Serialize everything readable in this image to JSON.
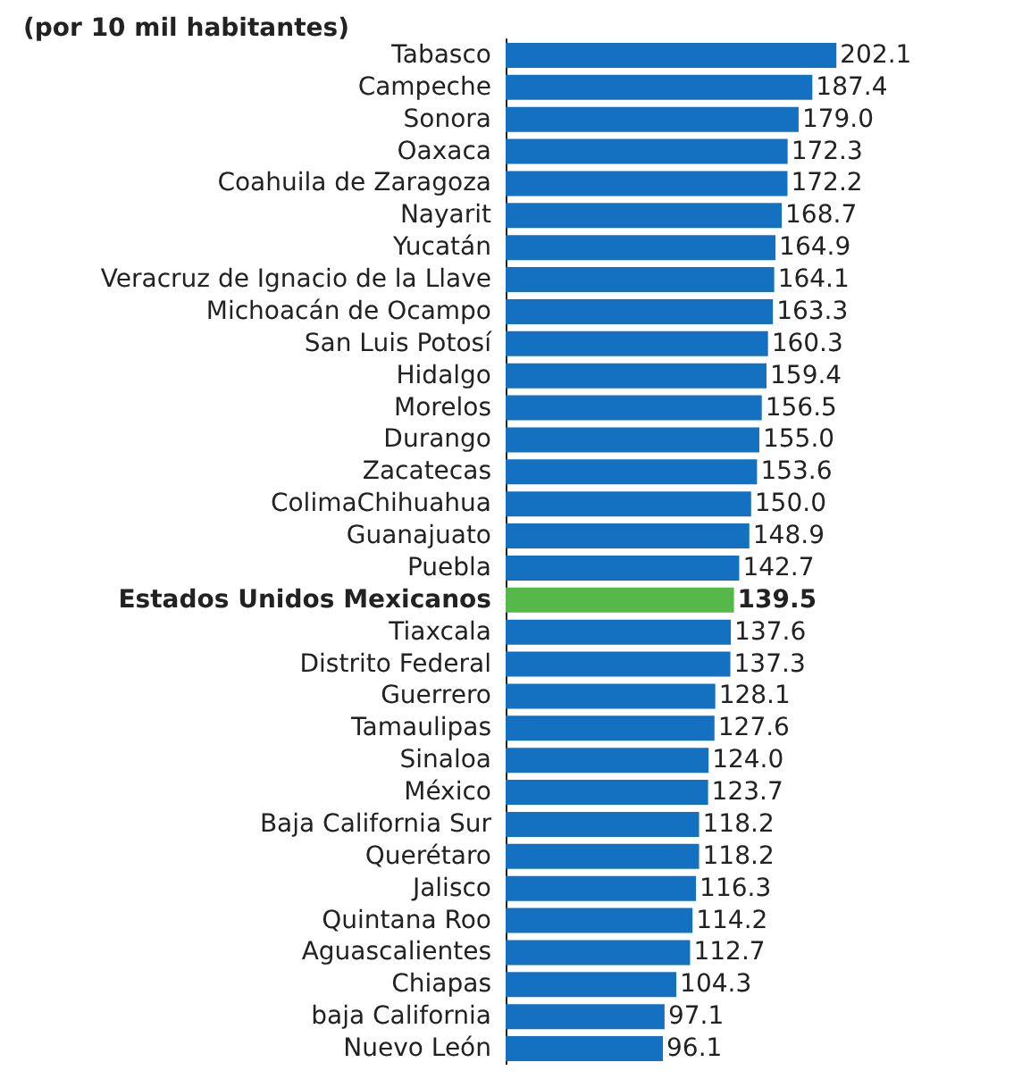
{
  "chart_data": {
    "type": "bar",
    "orientation": "horizontal",
    "subtitle": "(por 10 mil habitantes)",
    "value_labels": [
      "202.1",
      "187.4",
      "179.0",
      "172.3",
      "172.2",
      "168.7",
      "164.9",
      "164.1",
      "163.3",
      "160.3",
      "159.4",
      "156.5",
      "155.0",
      "153.6",
      "150.0",
      "148.9",
      "142.7",
      "139.5",
      "137.6",
      "137.3",
      "128.1",
      "127.6",
      "124.0",
      "123.7",
      "118.2",
      "118.2",
      "116.3",
      "114.2",
      "112.7",
      "104.3",
      "97.1",
      "96.1"
    ],
    "categories": [
      "Tabasco",
      "Campeche",
      "Sonora",
      "Oaxaca",
      "Coahuila de Zaragoza",
      "Nayarit",
      "Yucatán",
      "Veracruz de Ignacio de la Llave",
      "Michoacán de Ocampo",
      "San Luis Potosí",
      "Hidalgo",
      "Morelos",
      "Durango",
      "Zacatecas",
      "ColimaChihuahua",
      "Guanajuato",
      "Puebla",
      "Estados Unidos Mexicanos",
      "Tiaxcala",
      "Distrito Federal",
      "Guerrero",
      "Tamaulipas",
      "Sinaloa",
      "México",
      "Baja California Sur",
      "Querétaro",
      "Jalisco",
      "Quintana Roo",
      "Aguascalientes",
      "Chiapas",
      "baja California",
      "Nuevo León"
    ],
    "values": [
      202.1,
      187.4,
      179.0,
      172.3,
      172.2,
      168.7,
      164.9,
      164.1,
      163.3,
      160.3,
      159.4,
      156.5,
      155.0,
      153.6,
      150.0,
      148.9,
      142.7,
      139.5,
      137.6,
      137.3,
      128.1,
      127.6,
      124.0,
      123.7,
      118.2,
      118.2,
      116.3,
      114.2,
      112.7,
      104.3,
      97.1,
      96.1
    ],
    "colors": [
      "#1470c0",
      "#1470c0",
      "#1470c0",
      "#1470c0",
      "#1470c0",
      "#1470c0",
      "#1470c0",
      "#1470c0",
      "#1470c0",
      "#1470c0",
      "#1470c0",
      "#1470c0",
      "#1470c0",
      "#1470c0",
      "#1470c0",
      "#1470c0",
      "#1470c0",
      "#55b848",
      "#1470c0",
      "#1470c0",
      "#1470c0",
      "#1470c0",
      "#1470c0",
      "#1470c0",
      "#1470c0",
      "#1470c0",
      "#1470c0",
      "#1470c0",
      "#1470c0",
      "#1470c0",
      "#1470c0",
      "#1470c0"
    ]
  }
}
